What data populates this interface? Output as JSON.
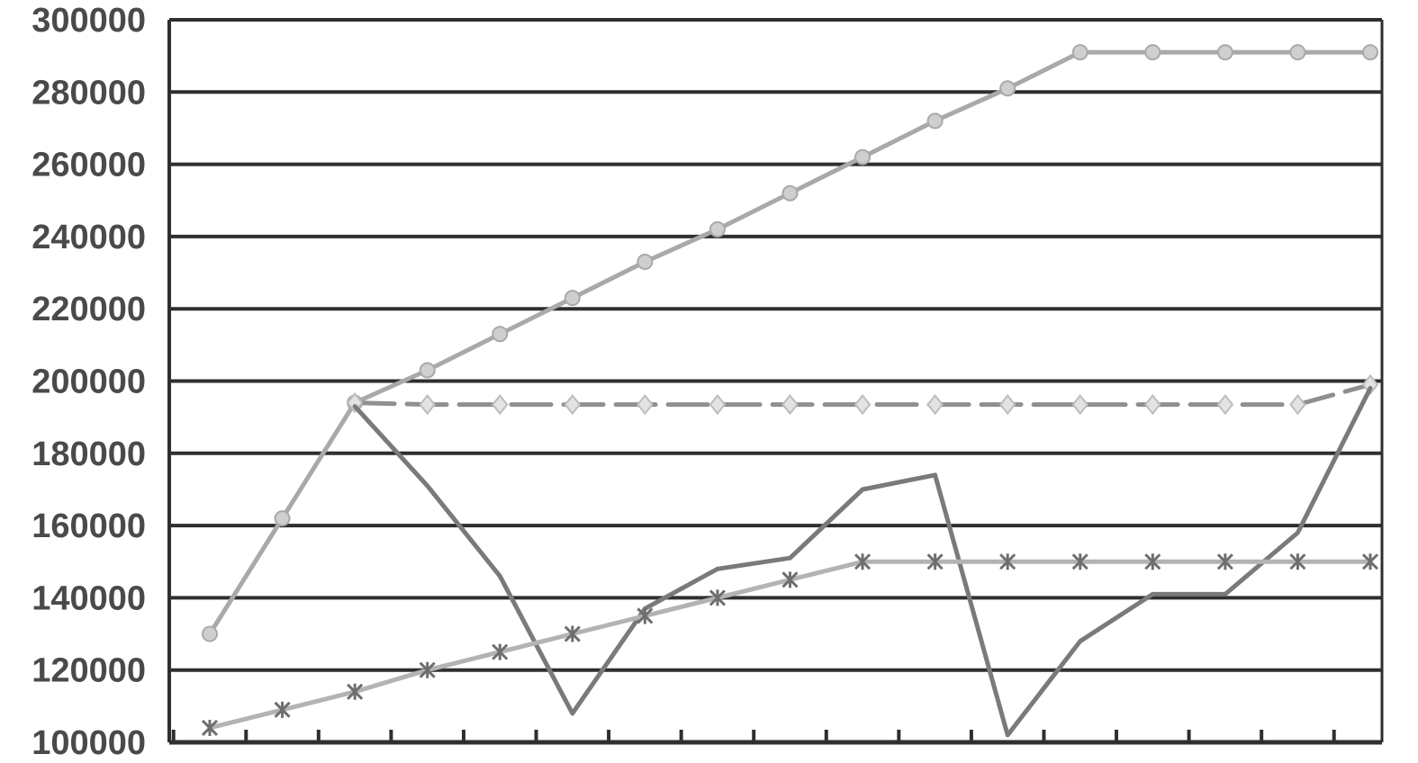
{
  "chart_data": {
    "type": "line",
    "title": "",
    "xlabel": "",
    "ylabel": "",
    "ylim": [
      100000,
      300000
    ],
    "yticks": [
      100000,
      120000,
      140000,
      160000,
      180000,
      200000,
      220000,
      240000,
      260000,
      280000,
      300000
    ],
    "ytick_labels": [
      "100000",
      "120000",
      "140000",
      "160000",
      "180000",
      "200000",
      "220000",
      "240000",
      "260000",
      "280000",
      "300000"
    ],
    "x": [
      1,
      2,
      3,
      4,
      5,
      6,
      7,
      8,
      9,
      10,
      11,
      12,
      13,
      14,
      15,
      16,
      17
    ],
    "grid": true,
    "legend": "none",
    "series": [
      {
        "style": "solid",
        "color": "#a9a9a9",
        "marker": "circle",
        "values": [
          130000,
          162000,
          194000,
          203000,
          213000,
          223000,
          233000,
          242000,
          252000,
          262000,
          272000,
          281000,
          291000,
          291000,
          291000,
          291000,
          291000
        ]
      },
      {
        "style": "dashed",
        "color": "#8f8f8f",
        "marker": "diamond",
        "values": [
          null,
          null,
          194000,
          193500,
          193500,
          193500,
          193500,
          193500,
          193500,
          193500,
          193500,
          193500,
          193500,
          193500,
          193500,
          193500,
          199000
        ]
      },
      {
        "style": "solid",
        "color": "#7a7a7a",
        "marker": "none",
        "values": [
          null,
          null,
          193000,
          171000,
          146000,
          108000,
          137000,
          148000,
          151000,
          170000,
          174000,
          102000,
          128000,
          141000,
          141000,
          158000,
          198000
        ]
      },
      {
        "style": "solid",
        "color": "#b3b3b3",
        "marker": "star",
        "values": [
          104000,
          109000,
          114000,
          120000,
          125000,
          130000,
          135000,
          140000,
          145000,
          150000,
          150000,
          150000,
          150000,
          150000,
          150000,
          150000,
          150000
        ]
      }
    ]
  }
}
